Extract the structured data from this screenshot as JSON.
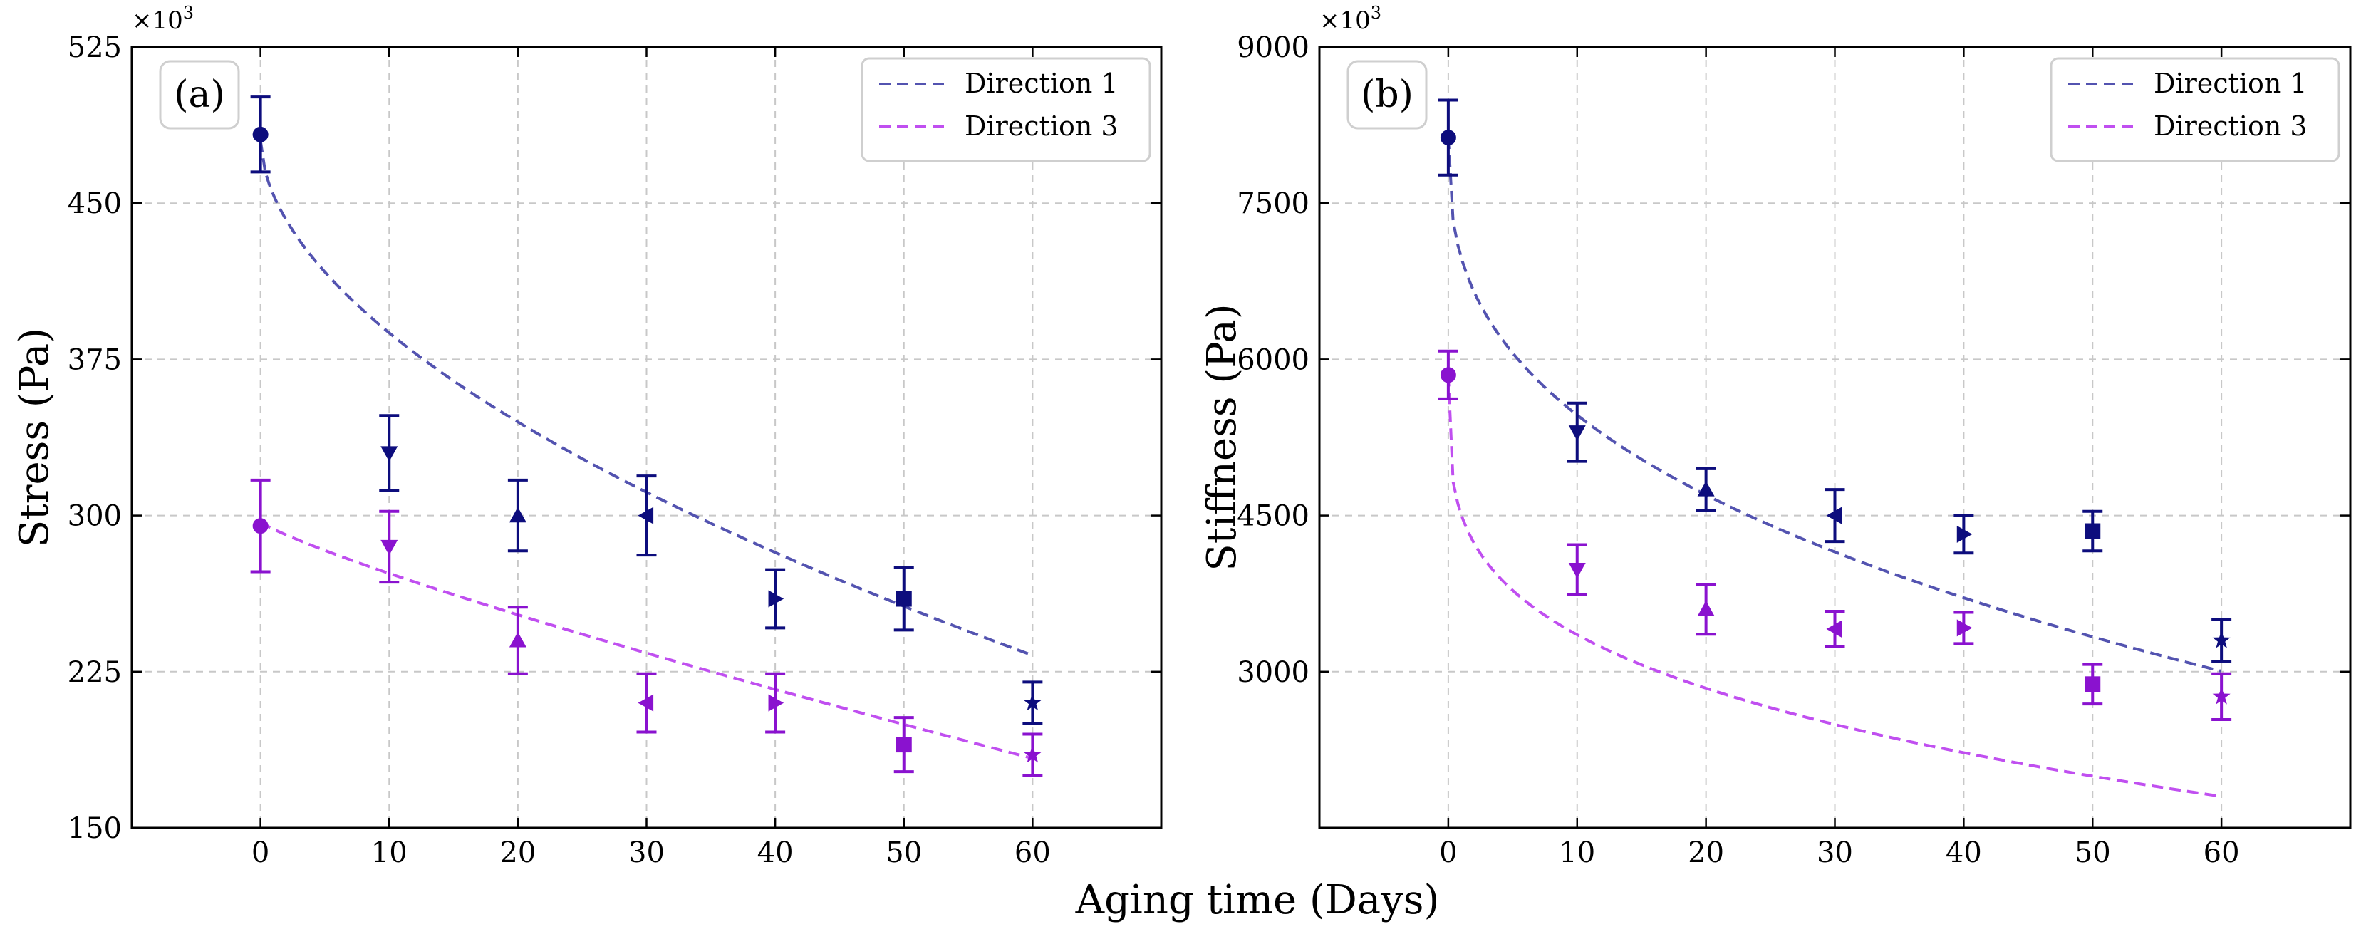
{
  "colors": {
    "direction1_points": "#0d0d7d",
    "direction1_fit": "#5353b0",
    "direction3_points": "#8a12cf",
    "direction3_fit": "#c04ff0"
  },
  "shared_xlabel": "Aging time (Days)",
  "chart_data": [
    {
      "type": "scatter",
      "panel_label": "(a)",
      "ylabel": "Stress (Pa)",
      "y_multiplier": "×10",
      "y_multiplier_exp": "3",
      "xlim": [
        -10,
        70
      ],
      "ylim": [
        150,
        525
      ],
      "xticks": [
        0,
        10,
        20,
        30,
        40,
        50,
        60
      ],
      "yticks": [
        150,
        225,
        300,
        375,
        450,
        525
      ],
      "grid": true,
      "legend_position": "top-right",
      "markers": [
        "circle",
        "triangle-down",
        "triangle-up",
        "triangle-left",
        "triangle-right",
        "square",
        "star"
      ],
      "series": [
        {
          "name": "Direction 1",
          "x": [
            0,
            10,
            20,
            30,
            40,
            50,
            60
          ],
          "y": [
            483,
            330,
            300,
            300,
            260,
            260,
            210
          ],
          "err": [
            18,
            18,
            17,
            19,
            14,
            15,
            10
          ],
          "fit": {
            "a": 480,
            "b": -26,
            "c": 0.55
          }
        },
        {
          "name": "Direction 3",
          "x": [
            0,
            10,
            20,
            30,
            40,
            50,
            60
          ],
          "y": [
            295,
            285,
            240,
            210,
            210,
            190,
            185
          ],
          "err": [
            22,
            17,
            16,
            14,
            14,
            13,
            10
          ],
          "fit": {
            "a": 297,
            "b": -3.5,
            "c": 0.85
          }
        }
      ]
    },
    {
      "type": "scatter",
      "panel_label": "(b)",
      "ylabel": "Stiffness (Pa)",
      "y_multiplier": "×10",
      "y_multiplier_exp": "3",
      "xlim": [
        -10,
        70
      ],
      "ylim": [
        1500,
        9000
      ],
      "xticks": [
        0,
        10,
        20,
        30,
        40,
        50,
        60
      ],
      "yticks": [
        3000,
        4500,
        6000,
        7500,
        9000
      ],
      "grid": true,
      "legend_position": "top-right",
      "markers": [
        "circle",
        "triangle-down",
        "triangle-up",
        "triangle-left",
        "triangle-right",
        "square",
        "star"
      ],
      "series": [
        {
          "name": "Direction 1",
          "x": [
            0,
            10,
            20,
            30,
            40,
            50,
            60
          ],
          "y": [
            8130,
            5300,
            4750,
            4500,
            4320,
            4350,
            3300
          ],
          "err": [
            360,
            280,
            200,
            250,
            180,
            190,
            200
          ],
          "fit": {
            "a": 8130,
            "b": -1150,
            "c": 0.365
          }
        },
        {
          "name": "Direction 3",
          "x": [
            0,
            10,
            20,
            30,
            40,
            50,
            60
          ],
          "y": [
            5850,
            3980,
            3600,
            3410,
            3420,
            2880,
            2760
          ],
          "err": [
            230,
            240,
            240,
            170,
            150,
            190,
            220
          ],
          "fit": {
            "a": 5850,
            "b": -1340,
            "c": 0.27
          }
        }
      ]
    }
  ]
}
